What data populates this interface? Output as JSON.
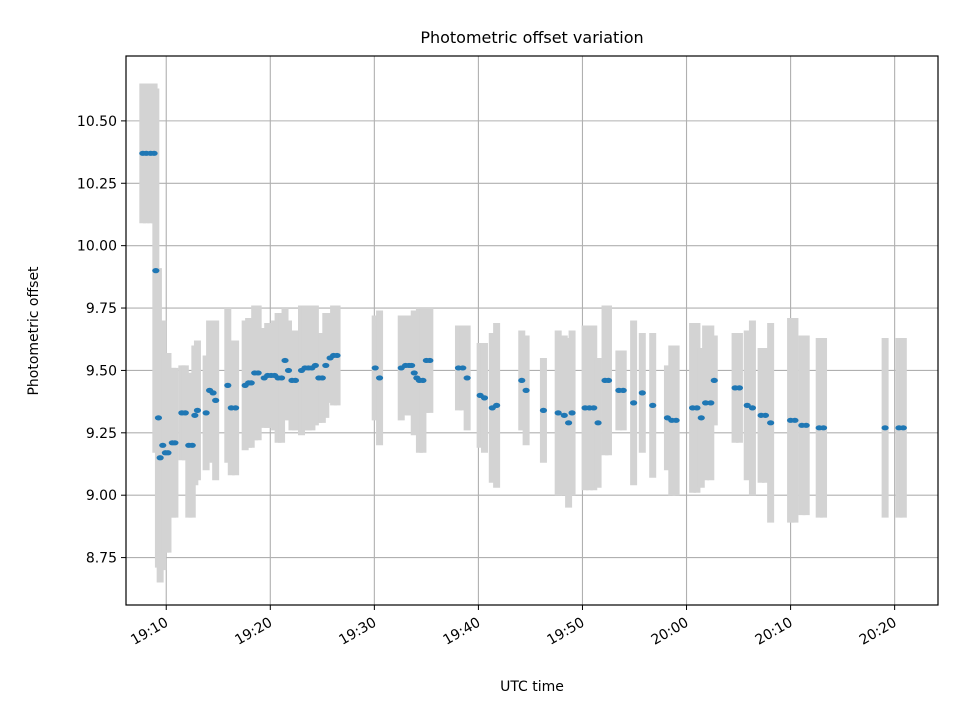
{
  "chart_data": {
    "type": "scatter",
    "title": "Photometric offset variation",
    "xlabel": "UTC time",
    "ylabel": "Photometric offset",
    "grid": true,
    "xlim": [
      "19:06:08",
      "20:24:10"
    ],
    "ylim": [
      8.56,
      10.76
    ],
    "xticks": [
      "19:10",
      "19:20",
      "19:30",
      "19:40",
      "19:50",
      "20:00",
      "20:10",
      "20:20"
    ],
    "yticks": [
      "8.75",
      "9.00",
      "9.25",
      "9.50",
      "9.75",
      "10.00",
      "10.25",
      "10.50"
    ],
    "colors": {
      "points": "#1f77b4",
      "errorbars": "#d3d3d3",
      "grid": "#b0b0b0"
    },
    "series": [
      {
        "x": [
          "19:07:45",
          "19:08:05",
          "19:08:30",
          "19:08:50",
          "19:09:00",
          "19:09:15",
          "19:09:25",
          "19:09:40",
          "19:09:55",
          "19:10:10",
          "19:10:35",
          "19:10:50",
          "19:11:30",
          "19:11:50",
          "19:12:10",
          "19:12:30",
          "19:12:45",
          "19:13:00",
          "19:13:50",
          "19:14:10",
          "19:14:30",
          "19:14:45",
          "19:15:55",
          "19:16:15",
          "19:16:40",
          "19:17:35",
          "19:17:55",
          "19:18:10",
          "19:18:30",
          "19:18:50",
          "19:19:25",
          "19:19:45",
          "19:20:05",
          "19:20:25",
          "19:20:45",
          "19:21:05",
          "19:21:25",
          "19:21:45",
          "19:22:05",
          "19:22:25",
          "19:23:00",
          "19:23:20",
          "19:23:40",
          "19:24:00",
          "19:24:20",
          "19:24:40",
          "19:25:00",
          "19:25:20",
          "19:25:45",
          "19:26:05",
          "19:26:25",
          "19:30:05",
          "19:30:30",
          "19:32:35",
          "19:33:00",
          "19:33:20",
          "19:33:35",
          "19:33:50",
          "19:34:05",
          "19:34:20",
          "19:34:40",
          "19:35:00",
          "19:35:20",
          "19:38:05",
          "19:38:30",
          "19:38:55",
          "19:40:10",
          "19:40:35",
          "19:41:20",
          "19:41:45",
          "19:44:10",
          "19:44:35",
          "19:46:15",
          "19:47:40",
          "19:48:15",
          "19:48:40",
          "19:49:00",
          "19:50:15",
          "19:50:40",
          "19:51:05",
          "19:51:30",
          "19:52:10",
          "19:52:30",
          "19:53:30",
          "19:53:55",
          "19:54:55",
          "19:55:45",
          "19:56:45",
          "19:58:10",
          "19:58:35",
          "19:59:00",
          "20:00:35",
          "20:01:00",
          "20:01:25",
          "20:01:50",
          "20:02:20",
          "20:02:40",
          "20:04:40",
          "20:05:05",
          "20:05:50",
          "20:06:20",
          "20:07:10",
          "20:07:35",
          "20:08:05",
          "20:10:00",
          "20:10:25",
          "20:11:05",
          "20:11:30",
          "20:12:45",
          "20:13:10",
          "20:19:05",
          "20:20:25",
          "20:20:50"
        ],
        "y": [
          10.37,
          10.37,
          10.37,
          10.37,
          9.9,
          9.31,
          9.15,
          9.2,
          9.17,
          9.17,
          9.21,
          9.21,
          9.33,
          9.33,
          9.2,
          9.2,
          9.32,
          9.34,
          9.33,
          9.42,
          9.41,
          9.38,
          9.44,
          9.35,
          9.35,
          9.44,
          9.45,
          9.45,
          9.49,
          9.49,
          9.47,
          9.48,
          9.48,
          9.48,
          9.47,
          9.47,
          9.54,
          9.5,
          9.46,
          9.46,
          9.5,
          9.51,
          9.51,
          9.51,
          9.52,
          9.47,
          9.47,
          9.52,
          9.55,
          9.56,
          9.56,
          9.51,
          9.47,
          9.51,
          9.52,
          9.52,
          9.52,
          9.49,
          9.47,
          9.46,
          9.46,
          9.54,
          9.54,
          9.51,
          9.51,
          9.47,
          9.4,
          9.39,
          9.35,
          9.36,
          9.46,
          9.42,
          9.34,
          9.33,
          9.32,
          9.29,
          9.33,
          9.35,
          9.35,
          9.35,
          9.29,
          9.46,
          9.46,
          9.42,
          9.42,
          9.37,
          9.41,
          9.36,
          9.31,
          9.3,
          9.3,
          9.35,
          9.35,
          9.31,
          9.37,
          9.37,
          9.46,
          9.43,
          9.43,
          9.36,
          9.35,
          9.32,
          9.32,
          9.29,
          9.3,
          9.3,
          9.28,
          9.28,
          9.27,
          9.27,
          9.27,
          9.27,
          9.27
        ],
        "err": [
          0.28,
          0.28,
          0.28,
          0.28,
          0.73,
          0.6,
          0.5,
          0.5,
          0.4,
          0.4,
          0.3,
          0.3,
          0.19,
          0.19,
          0.29,
          0.29,
          0.28,
          0.28,
          0.23,
          0.28,
          0.28,
          0.32,
          0.31,
          0.27,
          0.27,
          0.26,
          0.26,
          0.26,
          0.27,
          0.27,
          0.2,
          0.21,
          0.21,
          0.22,
          0.26,
          0.26,
          0.21,
          0.2,
          0.2,
          0.2,
          0.26,
          0.25,
          0.25,
          0.25,
          0.24,
          0.18,
          0.18,
          0.21,
          0.18,
          0.2,
          0.2,
          0.21,
          0.27,
          0.21,
          0.2,
          0.2,
          0.2,
          0.25,
          0.2,
          0.29,
          0.29,
          0.21,
          0.21,
          0.17,
          0.17,
          0.21,
          0.21,
          0.22,
          0.3,
          0.33,
          0.2,
          0.22,
          0.21,
          0.33,
          0.32,
          0.34,
          0.33,
          0.33,
          0.33,
          0.33,
          0.26,
          0.3,
          0.3,
          0.16,
          0.16,
          0.33,
          0.24,
          0.29,
          0.21,
          0.3,
          0.3,
          0.34,
          0.34,
          0.28,
          0.31,
          0.31,
          0.18,
          0.22,
          0.22,
          0.3,
          0.35,
          0.27,
          0.27,
          0.4,
          0.41,
          0.41,
          0.36,
          0.36,
          0.36,
          0.36,
          0.36,
          0.36,
          0.36
        ]
      }
    ]
  }
}
